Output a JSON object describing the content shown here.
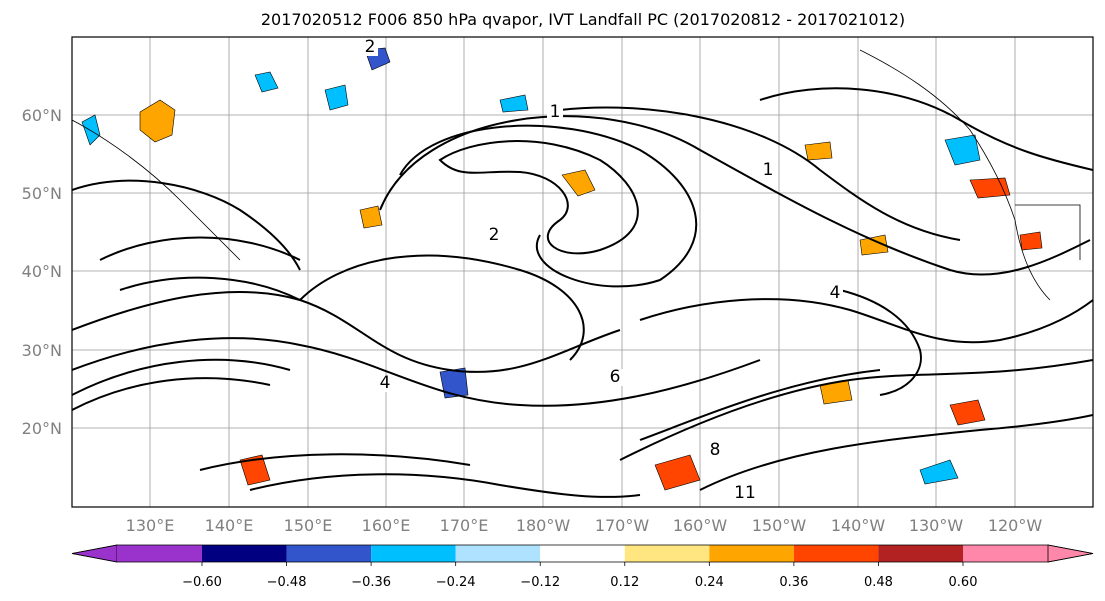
{
  "title": "2017020512 F006 850 hPa qvapor, IVT Landfall PC (2017020812 - 2017021012)",
  "map": {
    "lat_labels": [
      "60°N",
      "50°N",
      "40°N",
      "30°N",
      "20°N"
    ],
    "lon_labels": [
      "130°E",
      "140°E",
      "150°E",
      "160°E",
      "170°E",
      "180°W",
      "170°W",
      "160°W",
      "150°W",
      "140°W",
      "130°W",
      "120°W"
    ],
    "contour_labels": [
      "2",
      "2",
      "1",
      "1",
      "4",
      "4",
      "6",
      "8",
      "11"
    ]
  },
  "colorbar": {
    "colors": [
      "#9933cc",
      "#000080",
      "#3355cc",
      "#00bfff",
      "#aee2ff",
      "#ffffff",
      "#ffe680",
      "#ffa500",
      "#ff4500",
      "#b22222",
      "#ff88aa"
    ],
    "tick_labels": [
      "−0.60",
      "−0.48",
      "−0.36",
      "−0.24",
      "−0.12",
      "0.12",
      "0.24",
      "0.36",
      "0.48",
      "0.60"
    ]
  }
}
